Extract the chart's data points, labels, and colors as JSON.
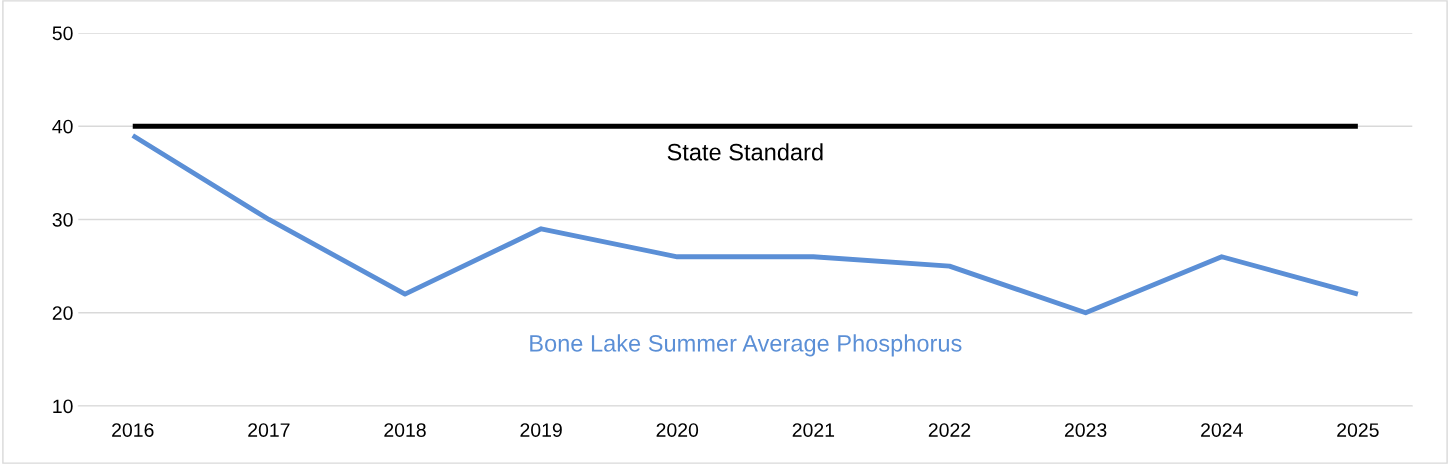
{
  "chart_data": {
    "type": "line",
    "categories": [
      "2016",
      "2017",
      "2018",
      "2019",
      "2020",
      "2021",
      "2022",
      "2023",
      "2024",
      "2025"
    ],
    "series": [
      {
        "name": "State Standard",
        "color": "#000000",
        "values": [
          40,
          40,
          40,
          40,
          40,
          40,
          40,
          40,
          40,
          40
        ]
      },
      {
        "name": "Bone Lake Summer Average Phosphorus",
        "color": "#5b8fd6",
        "values": [
          39,
          30,
          22,
          29,
          26,
          26,
          25,
          20,
          26,
          22
        ]
      }
    ],
    "ylim": [
      10,
      50
    ],
    "yticks": [
      10,
      20,
      30,
      40,
      50
    ],
    "grid": "y",
    "legend": false,
    "marker": "none",
    "line_style": "solid"
  }
}
